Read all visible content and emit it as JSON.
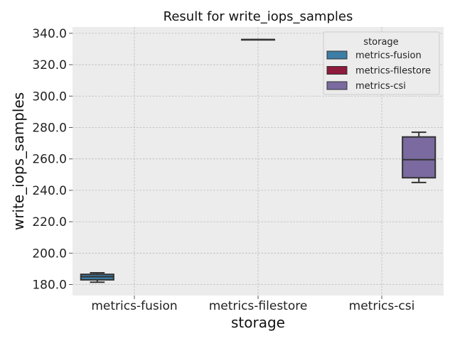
{
  "chart_data": {
    "type": "box",
    "title": "Result for write_iops_samples",
    "xlabel": "storage",
    "ylabel": "write_iops_samples",
    "categories": [
      "metrics-fusion",
      "metrics-filestore",
      "metrics-csi"
    ],
    "ylim": [
      173.0,
      344.0
    ],
    "yticks": [
      180.0,
      200.0,
      220.0,
      240.0,
      260.0,
      280.0,
      300.0,
      320.0,
      340.0
    ],
    "ytick_labels": [
      "180.0",
      "200.0",
      "220.0",
      "240.0",
      "260.0",
      "280.0",
      "300.0",
      "320.0",
      "340.0"
    ],
    "grid": true,
    "legend": {
      "title": "storage",
      "placement": "top-right"
    },
    "series": [
      {
        "name": "metrics-fusion",
        "color": "#3c7ea6",
        "whisker_low": 181.5,
        "q1": 183.0,
        "median": 185.0,
        "q3": 186.5,
        "whisker_high": 187.5
      },
      {
        "name": "metrics-filestore",
        "color": "#8e1a3c",
        "whisker_low": 336.0,
        "q1": 336.0,
        "median": 336.0,
        "q3": 336.0,
        "whisker_high": 336.0
      },
      {
        "name": "metrics-csi",
        "color": "#7a6aa0",
        "whisker_low": 245.0,
        "q1": 248.0,
        "median": 259.5,
        "q3": 274.0,
        "whisker_high": 277.0
      }
    ]
  }
}
